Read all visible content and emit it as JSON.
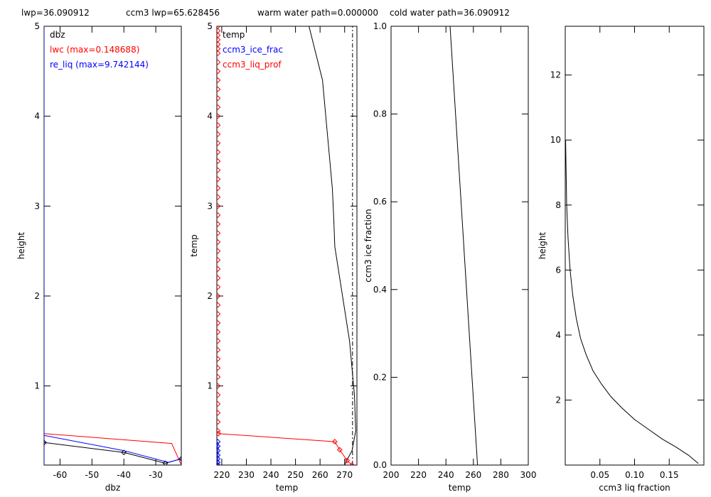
{
  "header": {
    "lwp": "lwp=36.090912",
    "ccm3_lwp": "ccm3 lwp=65.628456",
    "warm_path": "warm water path=0.000000",
    "cold_path": "cold water path=36.090912"
  },
  "colors": {
    "black": "#000000",
    "red": "#ff0000",
    "blue": "#0000ff"
  },
  "chart_data": [
    {
      "type": "line",
      "xlabel": "dbz",
      "ylabel": "height",
      "xlim": [
        -65,
        -22
      ],
      "ylim": [
        0.12,
        5.0
      ],
      "xticks": [
        -60,
        -50,
        -40,
        -30
      ],
      "yticks": [
        1,
        2,
        3,
        4,
        5
      ],
      "legend_position": "top-left",
      "series": [
        {
          "name": "dbz",
          "color": "#000000",
          "marker": "diamond",
          "x": [
            -65,
            -40,
            -27,
            -22
          ],
          "y": [
            0.37,
            0.26,
            0.14,
            0.19
          ]
        },
        {
          "name": "lwc (max=0.148688)",
          "color": "#ff0000",
          "marker": "none",
          "x": [
            -65,
            -25,
            -22
          ],
          "y": [
            0.47,
            0.36,
            0.12
          ]
        },
        {
          "name": "re_liq (max=9.742144)",
          "color": "#0000ff",
          "marker": "none",
          "x": [
            -65,
            -40,
            -26,
            -22
          ],
          "y": [
            0.45,
            0.28,
            0.15,
            0.19
          ]
        },
        {
          "name": "",
          "color": "#0000ff",
          "marker": "none",
          "x": [
            -65,
            -65
          ],
          "y": [
            0.12,
            5.0
          ]
        }
      ]
    },
    {
      "type": "line",
      "xlabel": "temp",
      "ylabel": "temp",
      "xlim": [
        218,
        275
      ],
      "ylim": [
        0.12,
        5.0
      ],
      "xticks": [
        220,
        230,
        240,
        250,
        260,
        270
      ],
      "yticks": [
        1,
        2,
        3,
        4,
        5
      ],
      "legend_position": "top-left",
      "series": [
        {
          "name": "temp",
          "color": "#000000",
          "marker": "none",
          "x": [
            255.5,
            261,
            263,
            265,
            265.5,
            266,
            272,
            274,
            274.5,
            273,
            271,
            270
          ],
          "y": [
            5.0,
            4.4,
            3.8,
            3.2,
            2.9,
            2.55,
            1.5,
            0.9,
            0.5,
            0.28,
            0.18,
            0.12
          ]
        },
        {
          "name": "",
          "color": "#000000",
          "marker": "none",
          "dash": true,
          "x": [
            273.2,
            273.2
          ],
          "y": [
            0.12,
            5.0
          ]
        },
        {
          "name": "ccm3_ice_frac",
          "color": "#0000ff",
          "marker": "diamond",
          "x": [
            218.4,
            218.4,
            218.4,
            218.4,
            218.4,
            218.4,
            218.4
          ],
          "y": [
            0.12,
            0.15,
            0.19,
            0.23,
            0.28,
            0.33,
            0.38
          ]
        },
        {
          "name": "ccm3_liq_prof",
          "color": "#ff0000",
          "marker": "diamond",
          "x": [
            218.6,
            266,
            268,
            271,
            273
          ],
          "y": [
            0.47,
            0.38,
            0.29,
            0.17,
            0.12
          ]
        },
        {
          "name": "",
          "color": "#ff0000",
          "marker": "diamond",
          "x": [
            218.4,
            218.4,
            218.4,
            218.4,
            218.4,
            218.4,
            218.4,
            218.4,
            218.4,
            218.4,
            218.4,
            218.4,
            218.4,
            218.4,
            218.4,
            218.4,
            218.4,
            218.4,
            218.4,
            218.4,
            218.4,
            218.4,
            218.4,
            218.4,
            218.4,
            218.4,
            218.4,
            218.4,
            218.4,
            218.4,
            218.4,
            218.4,
            218.4,
            218.4,
            218.4,
            218.4,
            218.4,
            218.4,
            218.4,
            218.4,
            218.4,
            218.4,
            218.4,
            218.4,
            218.4,
            218.4,
            218.4,
            218.4,
            218.4
          ],
          "y": [
            0.5,
            0.6,
            0.7,
            0.8,
            0.9,
            1.0,
            1.1,
            1.2,
            1.3,
            1.4,
            1.5,
            1.6,
            1.7,
            1.8,
            1.9,
            2.0,
            2.1,
            2.2,
            2.3,
            2.4,
            2.5,
            2.6,
            2.7,
            2.8,
            2.9,
            3.0,
            3.1,
            3.2,
            3.3,
            3.4,
            3.5,
            3.6,
            3.7,
            3.8,
            3.9,
            4.0,
            4.1,
            4.2,
            4.3,
            4.4,
            4.5,
            4.6,
            4.7,
            4.8,
            4.9,
            5.0,
            4.95,
            4.85,
            4.75
          ]
        }
      ]
    },
    {
      "type": "line",
      "xlabel": "temp",
      "ylabel": "ccm3 ice fraction",
      "xlim": [
        200,
        300
      ],
      "ylim": [
        0.0,
        1.0
      ],
      "xticks": [
        200,
        220,
        240,
        260,
        280,
        300
      ],
      "yticks": [
        0.0,
        0.2,
        0.4,
        0.6,
        0.8,
        1.0
      ],
      "series": [
        {
          "name": "",
          "color": "#000000",
          "marker": "none",
          "x": [
            243,
            263
          ],
          "y": [
            1.0,
            0.0
          ]
        }
      ]
    },
    {
      "type": "line",
      "xlabel": "ccm3 liq fraction",
      "ylabel": "height",
      "xlim": [
        0.0,
        0.2
      ],
      "ylim": [
        0.0,
        13.5
      ],
      "xticks": [
        0.05,
        0.1,
        0.15
      ],
      "yticks": [
        2,
        4,
        6,
        8,
        10,
        12
      ],
      "series": [
        {
          "name": "",
          "color": "#000000",
          "marker": "none",
          "x": [
            0.0005,
            0.002,
            0.004,
            0.007,
            0.011,
            0.016,
            0.022,
            0.03,
            0.04,
            0.052,
            0.066,
            0.082,
            0.1,
            0.12,
            0.14,
            0.16,
            0.178,
            0.192
          ],
          "y": [
            10.0,
            8.0,
            7.0,
            6.0,
            5.2,
            4.5,
            3.9,
            3.4,
            2.9,
            2.5,
            2.1,
            1.75,
            1.4,
            1.1,
            0.8,
            0.55,
            0.3,
            0.05
          ]
        }
      ]
    }
  ]
}
